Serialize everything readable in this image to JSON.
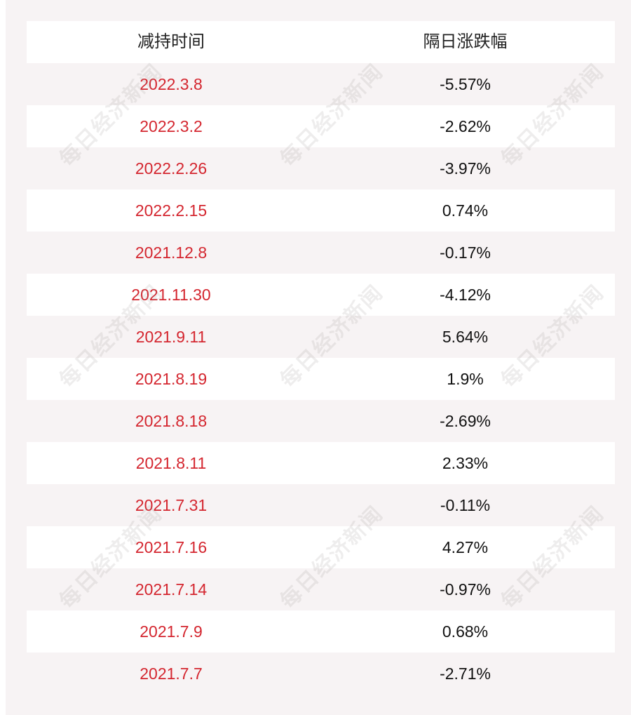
{
  "table": {
    "headers": [
      "减持时间",
      "隔日涨跌幅"
    ],
    "rows": [
      {
        "date": "2022.3.8",
        "change": "-5.57%"
      },
      {
        "date": "2022.3.2",
        "change": "-2.62%"
      },
      {
        "date": "2022.2.26",
        "change": "-3.97%"
      },
      {
        "date": "2022.2.15",
        "change": "0.74%"
      },
      {
        "date": "2021.12.8",
        "change": "-0.17%"
      },
      {
        "date": "2021.11.30",
        "change": "-4.12%"
      },
      {
        "date": "2021.9.11",
        "change": "5.64%"
      },
      {
        "date": "2021.8.19",
        "change": "1.9%"
      },
      {
        "date": "2021.8.18",
        "change": "-2.69%"
      },
      {
        "date": "2021.8.11",
        "change": "2.33%"
      },
      {
        "date": "2021.7.31",
        "change": "-0.11%"
      },
      {
        "date": "2021.7.16",
        "change": "4.27%"
      },
      {
        "date": "2021.7.14",
        "change": "-0.97%"
      },
      {
        "date": "2021.7.9",
        "change": "0.68%"
      },
      {
        "date": "2021.7.7",
        "change": "-2.71%"
      }
    ]
  },
  "watermark": {
    "text": "每日经济新闻"
  },
  "colors": {
    "date_text": "#d4262f",
    "value_text": "#111111",
    "panel_bg": "#f7f3f4",
    "row_bg": "#ffffff"
  }
}
